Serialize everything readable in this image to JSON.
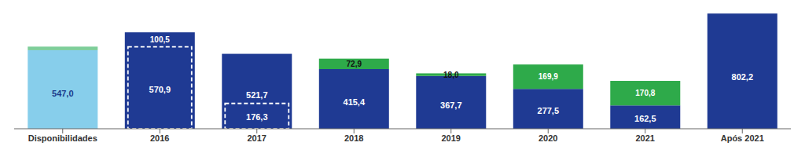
{
  "chart_data": {
    "type": "bar",
    "stacked": true,
    "data_labels": true,
    "tick_labels": "x",
    "grid": false,
    "categories": [
      "Disponibilidades",
      "2016",
      "2017",
      "2018",
      "2019",
      "2020",
      "2021",
      "Após 2021"
    ],
    "ylim": [
      0,
      820
    ],
    "series": [
      {
        "values": [
          547.0,
          671.4,
          521.7,
          415.4,
          367.7,
          277.5,
          162.5,
          802.2
        ],
        "colors": [
          "#87CEEB",
          "#1F3A93",
          "#1F3A93",
          "#1F3A93",
          "#1F3A93",
          "#1F3A93",
          "#1F3A93",
          "#1F3A93"
        ],
        "value_labels": [
          "547,0",
          null,
          "521,7",
          "415,4",
          "367,7",
          "277,5",
          "162,5",
          "802,2"
        ]
      },
      {
        "values": [
          25.0,
          0,
          0,
          72.9,
          18.0,
          169.9,
          170.8,
          0
        ],
        "colors": [
          "#7ECE9A",
          "#2EAA4A",
          "#2EAA4A",
          "#2EAA4A",
          "#2EAA4A",
          "#2EAA4A",
          "#2EAA4A",
          "#2EAA4A"
        ],
        "value_labels": [
          null,
          null,
          null,
          "72,9",
          "18,0",
          "169,9",
          "170,8",
          null
        ]
      },
      {
        "type": "box",
        "line_style": "dashed",
        "color": "#FFFFFF",
        "values": [
          0,
          570.9,
          176.3,
          0,
          0,
          0,
          0,
          0
        ],
        "value_labels": [
          null,
          "570,9",
          "176,3",
          null,
          null,
          null,
          null,
          null
        ]
      }
    ],
    "annotations": [
      {
        "category": "2016",
        "text": "100,5"
      }
    ]
  }
}
